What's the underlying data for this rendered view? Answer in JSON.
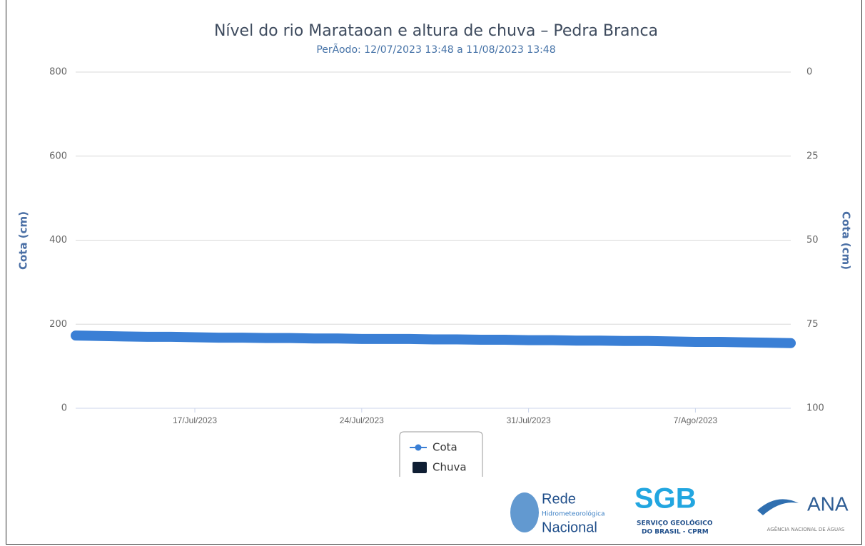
{
  "chart_data": {
    "type": "line",
    "title": "Nível do rio Marataoan e altura de chuva – Pedra Branca",
    "subtitle": "PerÃodo: 12/07/2023 13:48 a 11/08/2023 13:48",
    "y_label": "Cota (cm)",
    "y2_label": "Cota (cm)",
    "x": [
      "2023-07-12",
      "2023-07-13",
      "2023-07-14",
      "2023-07-15",
      "2023-07-16",
      "2023-07-17",
      "2023-07-18",
      "2023-07-19",
      "2023-07-20",
      "2023-07-21",
      "2023-07-22",
      "2023-07-23",
      "2023-07-24",
      "2023-07-25",
      "2023-07-26",
      "2023-07-27",
      "2023-07-28",
      "2023-07-29",
      "2023-07-30",
      "2023-07-31",
      "2023-08-01",
      "2023-08-02",
      "2023-08-03",
      "2023-08-04",
      "2023-08-05",
      "2023-08-06",
      "2023-08-07",
      "2023-08-08",
      "2023-08-09",
      "2023-08-10",
      "2023-08-11"
    ],
    "xlim": [
      "2023-07-12",
      "2023-08-11"
    ],
    "xticks": [
      {
        "value": "2023-07-17",
        "label": "17/Jul/2023"
      },
      {
        "value": "2023-07-24",
        "label": "24/Jul/2023"
      },
      {
        "value": "2023-07-31",
        "label": "31/Jul/2023"
      },
      {
        "value": "2023-08-07",
        "label": "7/Ago/2023"
      }
    ],
    "series": [
      {
        "name": "Cota",
        "color": "#3a7fd5",
        "axis": "y",
        "values": [
          173,
          172,
          171,
          170,
          170,
          169,
          168,
          168,
          167,
          167,
          166,
          166,
          165,
          165,
          165,
          164,
          164,
          163,
          163,
          162,
          162,
          161,
          161,
          160,
          160,
          159,
          158,
          158,
          157,
          156,
          155
        ]
      },
      {
        "name": "Chuva",
        "color": "#0f1e33",
        "axis": "y2",
        "type": "bar",
        "values": [
          0,
          0,
          0,
          0,
          0,
          0,
          0,
          0,
          0,
          0,
          0,
          0,
          0,
          0,
          0,
          0,
          0,
          0,
          0,
          0,
          0,
          0,
          0,
          0,
          0,
          0,
          0,
          0,
          0,
          0,
          0
        ]
      }
    ],
    "ylim": [
      0,
      800
    ],
    "yticks": [
      0,
      200,
      400,
      600,
      800
    ],
    "y2lim": [
      100,
      0
    ],
    "y2ticks": [
      0,
      25,
      50,
      75,
      100
    ],
    "grid": true,
    "legend": "bottom"
  },
  "logos": {
    "rede": [
      "Rede",
      "Hidrometeorológica",
      "Nacional"
    ],
    "sgb": [
      "SGB",
      "SERVIÇO GEOLÓGICO",
      "DO BRASIL - CPRM"
    ],
    "ana": [
      "ANA",
      "AGÊNCIA NACIONAL DE ÁGUAS"
    ]
  }
}
